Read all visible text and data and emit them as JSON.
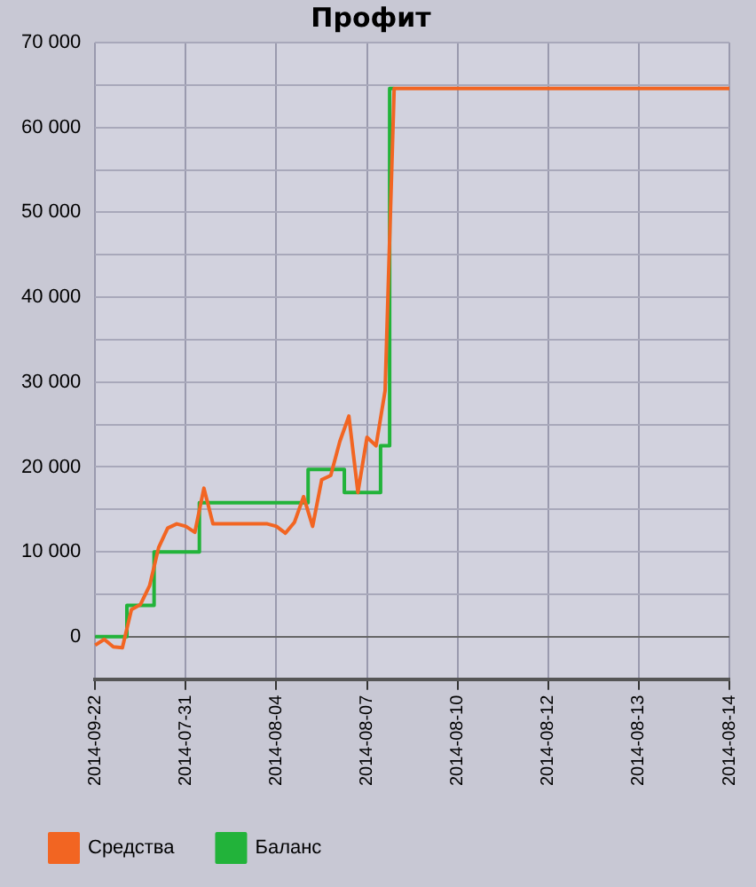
{
  "chart_data": {
    "type": "line",
    "title": "Профит",
    "categories": [
      "2014-09-22",
      null,
      null,
      null,
      null,
      null,
      null,
      null,
      null,
      null,
      "2014-07-31",
      null,
      null,
      null,
      null,
      null,
      null,
      null,
      null,
      null,
      "2014-08-04",
      null,
      null,
      null,
      null,
      null,
      null,
      null,
      null,
      null,
      "2014-08-07",
      null,
      null,
      null,
      null,
      null,
      null,
      null,
      null,
      null,
      "2014-08-10",
      null,
      null,
      null,
      null,
      null,
      null,
      null,
      null,
      null,
      "2014-08-12",
      null,
      null,
      null,
      null,
      null,
      null,
      null,
      null,
      null,
      "2014-08-13",
      null,
      null,
      null,
      null,
      null,
      null,
      null,
      null,
      null,
      "2014-08-14"
    ],
    "series": [
      {
        "name": "Баланс",
        "type": "step",
        "color": "#22b33a",
        "values": [
          0,
          0,
          0,
          0,
          3700,
          3700,
          3700,
          10000,
          10000,
          10000,
          10000,
          10000,
          15800,
          15800,
          15800,
          15800,
          15800,
          15800,
          15800,
          15800,
          15800,
          15800,
          15800,
          15800,
          19700,
          19700,
          19700,
          19700,
          17000,
          17000,
          17000,
          17000,
          22500,
          64600,
          null,
          null,
          null,
          null,
          null,
          null,
          null,
          null,
          null,
          null,
          null,
          null,
          null,
          null,
          null,
          null,
          null,
          null,
          null,
          null,
          null,
          null,
          null,
          null,
          null,
          null,
          null,
          null,
          null,
          null,
          null,
          null,
          null,
          null,
          null,
          null,
          null
        ]
      },
      {
        "name": "Средства",
        "color": "#f26522",
        "values": [
          -1000,
          -300,
          -1200,
          -1300,
          3200,
          3800,
          6000,
          10500,
          12800,
          13300,
          13000,
          12300,
          17500,
          13300,
          13300,
          13300,
          13300,
          13300,
          13300,
          13300,
          13000,
          12200,
          13500,
          16500,
          13000,
          18500,
          19000,
          23000,
          26000,
          17000,
          23500,
          22500,
          29000,
          64600,
          64600,
          64600,
          64600,
          64600,
          64600,
          64600,
          64600,
          64600,
          64600,
          64600,
          64600,
          64600,
          64600,
          64600,
          64600,
          64600,
          64600,
          64600,
          64600,
          64600,
          64600,
          64600,
          64600,
          64600,
          64600,
          64600,
          64600,
          64600,
          64600,
          64600,
          64600,
          64600,
          64600,
          64600,
          64600,
          64600,
          64600
        ]
      }
    ],
    "ylim": [
      -5000,
      70000
    ],
    "yticks": [
      0,
      {
        "value": 5000,
        "label": null
      },
      {
        "value": 10000,
        "label": "10 000"
      },
      {
        "value": 15000,
        "label": null
      },
      {
        "value": 20000,
        "label": "20 000"
      },
      {
        "value": 25000,
        "label": null
      },
      {
        "value": 30000,
        "label": "30 000"
      },
      {
        "value": 35000,
        "label": null
      },
      {
        "value": 40000,
        "label": "40 000"
      },
      {
        "value": 45000,
        "label": null
      },
      {
        "value": 50000,
        "label": "50 000"
      },
      {
        "value": 55000,
        "label": null
      },
      {
        "value": 60000,
        "label": "60 000"
      },
      {
        "value": 65000,
        "label": null
      },
      {
        "value": 70000,
        "label": "70 000"
      }
    ],
    "grid": true,
    "legend": "bottom left",
    "marker": "none",
    "line_style": "solid"
  }
}
